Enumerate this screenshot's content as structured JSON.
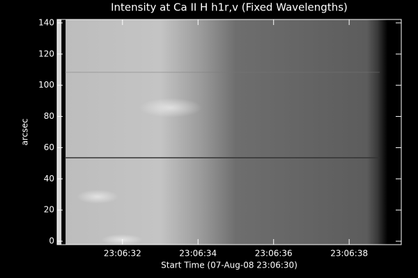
{
  "chart_data": {
    "type": "image",
    "title": "Intensity at Ca II H h1r,v (Fixed Wavelengths)",
    "x_label": "Start Time (07-Aug-08 23:06:30)",
    "y_label": "arcsec",
    "xlim": [
      0.27,
      9.38
    ],
    "ylim": [
      -2.2,
      142.2
    ],
    "xticks": [
      {
        "value": 2,
        "label": "23:06:32"
      },
      {
        "value": 4,
        "label": "23:06:34"
      },
      {
        "value": 6,
        "label": "23:06:36"
      },
      {
        "value": 8,
        "label": "23:06:38"
      }
    ],
    "yticks": [
      0,
      20,
      40,
      60,
      80,
      100,
      120,
      140
    ]
  }
}
